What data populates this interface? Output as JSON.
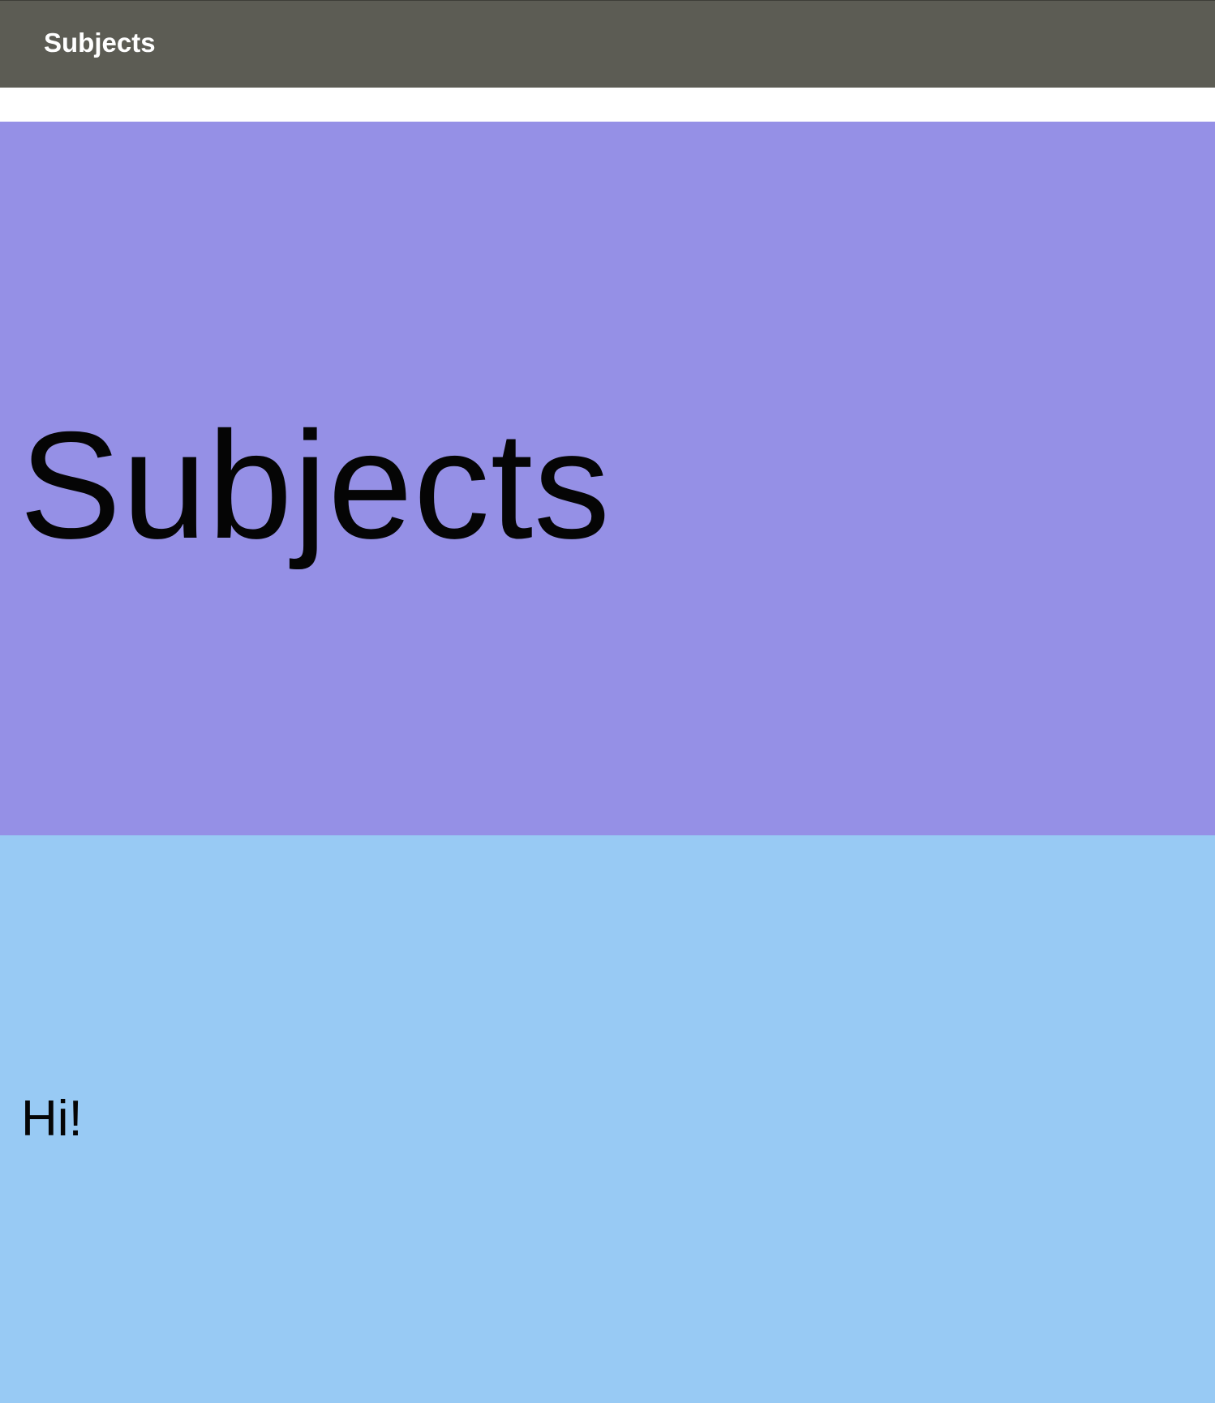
{
  "app_bar": {
    "title": "Subjects",
    "color": "#5c5c54"
  },
  "top_panel": {
    "heading": "Subjects",
    "color": "#9590e6"
  },
  "bottom_panel": {
    "text": "Hi!",
    "color": "#98caf4"
  }
}
